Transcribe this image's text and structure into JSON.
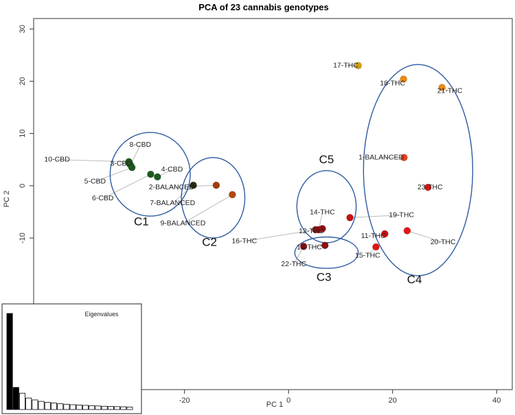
{
  "chart_data": {
    "type": "scatter",
    "title": "PCA of 23 cannabis genotypes",
    "xlabel": "PC 1",
    "ylabel": "PC 2",
    "xlim": [
      -49,
      43
    ],
    "ylim": [
      -39,
      32
    ],
    "xticks": [
      -20,
      0,
      20,
      40
    ],
    "yticks": [
      -10,
      0,
      10,
      20,
      30
    ],
    "points": [
      {
        "label": "1-BALANCED",
        "x": 22.2,
        "y": 5.4,
        "color": "#e8401c",
        "lx": 17.8,
        "ly": 5.4
      },
      {
        "label": "2-BALANCED",
        "x": -13.9,
        "y": 0.1,
        "color": "#a33a0c",
        "lx": -22.5,
        "ly": -0.3
      },
      {
        "label": "3-CBD",
        "x": -30.6,
        "y": 4.3,
        "color": "#1e5a1e",
        "lx": -32.2,
        "ly": 4.2
      },
      {
        "label": "4-CBD",
        "x": -25.2,
        "y": 1.7,
        "color": "#1e5a1e",
        "lx": -22.4,
        "ly": 3.1
      },
      {
        "label": "5-CBD",
        "x": -30.1,
        "y": 3.5,
        "color": "#1e5a1e",
        "lx": -37.2,
        "ly": 0.8
      },
      {
        "label": "6-CBD",
        "x": -26.5,
        "y": 2.2,
        "color": "#1e5a1e",
        "lx": -35.7,
        "ly": -2.4
      },
      {
        "label": "7-BALANCED",
        "x": -18.3,
        "y": 0.1,
        "color": "#2a2a10",
        "lx": -22.3,
        "ly": -3.3
      },
      {
        "label": "8-CBD",
        "x": -30.4,
        "y": 4.0,
        "color": "#1e5a1e",
        "lx": -28.5,
        "ly": 7.8
      },
      {
        "label": "9-BALANCED",
        "x": -10.8,
        "y": -1.7,
        "color": "#b3480e",
        "lx": -20.3,
        "ly": -7.2
      },
      {
        "label": "10-CBD",
        "x": -30.7,
        "y": 4.6,
        "color": "#1e5a1e",
        "lx": -44.5,
        "ly": 5.0
      },
      {
        "label": "11-THC",
        "x": 18.5,
        "y": -9.2,
        "color": "#c81010",
        "lx": 16.3,
        "ly": -9.6
      },
      {
        "label": "12-THC",
        "x": 6.5,
        "y": -8.2,
        "color": "#8c1010",
        "lx": 4.4,
        "ly": -8.7
      },
      {
        "label": "13-THC",
        "x": 7.0,
        "y": -11.4,
        "color": "#8c1010",
        "lx": 4.0,
        "ly": -11.8
      },
      {
        "label": "14-THC",
        "x": 5.8,
        "y": -8.4,
        "color": "#a81010",
        "lx": 6.5,
        "ly": -5.1
      },
      {
        "label": "15-THC",
        "x": 16.8,
        "y": -11.7,
        "color": "#e01515",
        "lx": 15.2,
        "ly": -13.4
      },
      {
        "label": "16-THC",
        "x": 5.2,
        "y": -8.4,
        "color": "#8c1010",
        "lx": -8.5,
        "ly": -10.6
      },
      {
        "label": "17-THC",
        "x": 13.4,
        "y": 23.0,
        "color": "#d4a010",
        "lx": 11.0,
        "ly": 23.0
      },
      {
        "label": "18-THC",
        "x": 22.1,
        "y": 20.4,
        "color": "#f08a10",
        "lx": 20.0,
        "ly": 19.6
      },
      {
        "label": "19-THC",
        "x": 11.8,
        "y": -6.1,
        "color": "#c81010",
        "lx": 21.7,
        "ly": -5.6
      },
      {
        "label": "20-THC",
        "x": 22.8,
        "y": -8.6,
        "color": "#e81515",
        "lx": 29.7,
        "ly": -10.8
      },
      {
        "label": "21-THC",
        "x": 29.5,
        "y": 18.8,
        "color": "#f08a10",
        "lx": 31.0,
        "ly": 18.1
      },
      {
        "label": "22-THC",
        "x": 2.9,
        "y": -11.6,
        "color": "#8c1010",
        "lx": 1.0,
        "ly": -15.0
      },
      {
        "label": "23-THC",
        "x": 26.8,
        "y": -0.3,
        "color": "#e01515",
        "lx": 27.2,
        "ly": -0.3
      }
    ],
    "clusters": [
      {
        "name": "C1",
        "cx": -26.6,
        "cy": 2.2,
        "rx": 7.7,
        "ry": 8.0,
        "lx": -28.3,
        "ly": -7.0
      },
      {
        "name": "C2",
        "cx": -14.5,
        "cy": -2.3,
        "rx": 6.1,
        "ry": 7.7,
        "lx": -15.2,
        "ly": -10.9
      },
      {
        "name": "C3",
        "cx": 7.3,
        "cy": -12.8,
        "rx": 6.1,
        "ry": 3.0,
        "lx": 6.8,
        "ly": -17.6
      },
      {
        "name": "C4",
        "cx": 24.9,
        "cy": 3.0,
        "rx": 10.5,
        "ry": 20.2,
        "lx": 24.2,
        "ly": -18.1
      },
      {
        "name": "C5",
        "cx": 7.3,
        "cy": -4.0,
        "rx": 5.7,
        "ry": 6.9,
        "lx": 7.3,
        "ly": 4.9
      }
    ],
    "inset": {
      "title": "Eigenvalues",
      "values": [
        100,
        23,
        17,
        12,
        10,
        8.5,
        7.5,
        6.8,
        6.0,
        5.5,
        5.0,
        4.7,
        4.3,
        4.0,
        3.7,
        3.4,
        3.2,
        3.0,
        2.8,
        2.6
      ],
      "highlight_count": 2
    }
  }
}
